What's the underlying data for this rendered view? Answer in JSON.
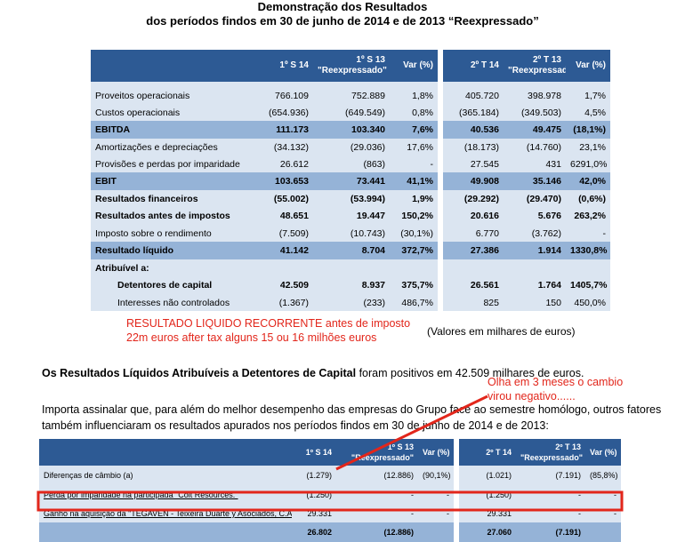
{
  "report": {
    "title_line1": "Demonstração dos Resultados",
    "title_line2": "dos períodos findos em 30 de junho de 2014 e de 2013 “Reexpressado”"
  },
  "main_table": {
    "headers": [
      "",
      "1º S 14",
      "1º S 13",
      "\"Reexpressado\"",
      "Var (%)",
      "2º T 14",
      "2º T 13",
      "\"Reexpressado\"",
      "Var (%)"
    ],
    "rows": [
      [
        "Proveitos operacionais",
        "766.109",
        "752.889",
        "1,8%",
        "405.720",
        "398.978",
        "1,7%"
      ],
      [
        "Custos operacionais",
        "(654.936)",
        "(649.549)",
        "0,8%",
        "(365.184)",
        "(349.503)",
        "4,5%"
      ],
      [
        "EBITDA",
        "111.173",
        "103.340",
        "7,6%",
        "40.536",
        "49.475",
        "(18,1%)"
      ],
      [
        "Amortizações e depreciações",
        "(34.132)",
        "(29.036)",
        "17,6%",
        "(18.173)",
        "(14.760)",
        "23,1%"
      ],
      [
        "Provisões e perdas por imparidade",
        "26.612",
        "(863)",
        "-",
        "27.545",
        "431",
        "6291,0%"
      ],
      [
        "EBIT",
        "103.653",
        "73.441",
        "41,1%",
        "49.908",
        "35.146",
        "42,0%"
      ],
      [
        "Resultados financeiros",
        "(55.002)",
        "(53.994)",
        "1,9%",
        "(29.292)",
        "(29.470)",
        "(0,6%)"
      ],
      [
        "Resultados antes de impostos",
        "48.651",
        "19.447",
        "150,2%",
        "20.616",
        "5.676",
        "263,2%"
      ],
      [
        "Imposto sobre o rendimento",
        "(7.509)",
        "(10.743)",
        "(30,1%)",
        "6.770",
        "(3.762)",
        "-"
      ],
      [
        "Resultado líquido",
        "41.142",
        "8.704",
        "372,7%",
        "27.386",
        "1.914",
        "1330,8%"
      ],
      [
        "Atribuível a:",
        "",
        "",
        "",
        "",
        "",
        ""
      ],
      [
        "Detentores de capital",
        "42.509",
        "8.937",
        "375,7%",
        "26.561",
        "1.764",
        "1405,7%"
      ],
      [
        "Interesses não controlados",
        "(1.367)",
        "(233)",
        "486,7%",
        "825",
        "150",
        "450,0%"
      ]
    ]
  },
  "annotation": {
    "line1": "RESULTADO LIQUIDO RECORRENTE antes de imposto",
    "line2": "22m euros after tax alguns 15 ou 16 milhões euros",
    "fx_note_line1": "Olha em 3 meses o cambio",
    "fx_note_line2": "virou negativo......",
    "color": "#e2261b"
  },
  "units_note": "(Valores em milhares de euros)",
  "paragraph1": {
    "bold": "Os Resultados Líquidos Atribuíveis a Detentores de Capital",
    "rest": " foram positivos em 42.509 milhares de euros."
  },
  "paragraph2": {
    "line1": "Importa assinalar que, para além do melhor desempenho das empresas do Grupo face ao semestre homólogo, outros fatores",
    "line2": "também influenciaram os resultados apurados nos períodos findos em 30 de junho de 2014 e de 2013:"
  },
  "second_table": {
    "headers": [
      "",
      "1º S 14",
      "1º S 13",
      "\"Reexpressado\"",
      "Var (%)",
      "2º T 14",
      "2º T 13",
      "\"Reexpressado\"",
      "Var (%)"
    ],
    "rows": [
      [
        "Diferenças de câmbio (a)",
        "(1.279)",
        "(12.886)",
        "(90,1%)",
        "(1.021)",
        "(7.191)",
        "(85,8%)"
      ],
      [
        "Perda por imparidade na  participada \"Colt Resources.\"",
        "(1.250)",
        "-",
        "-",
        "(1.250)",
        "-",
        "-"
      ],
      [
        "Ganho na aquisição da \"TEGAVEN - Teixeira Duarte y Asociados, C.A.\"",
        "29.331",
        "-",
        "-",
        "29.331",
        "-",
        "-"
      ],
      [
        "",
        "26.802",
        "(12.886)",
        "",
        "27.060",
        "(7.191)",
        ""
      ]
    ]
  }
}
